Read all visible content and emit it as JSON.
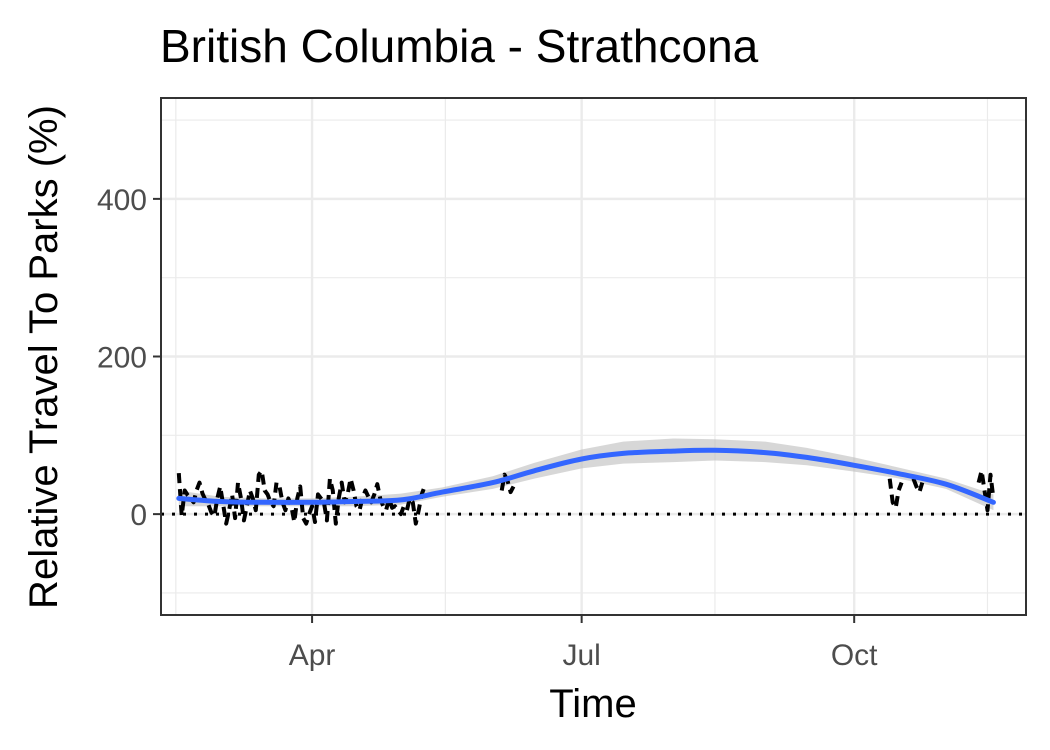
{
  "chart_data": {
    "type": "line",
    "title": "British Columbia - Strathcona",
    "xlabel": "Time",
    "ylabel": "Relative Travel To Parks (%)",
    "x_ticks": [
      "Apr",
      "Jul",
      "Oct"
    ],
    "x_tick_dates": [
      "2020-04-01",
      "2020-07-01",
      "2020-10-01"
    ],
    "xlim": [
      "2020-02-10",
      "2020-11-28"
    ],
    "y_ticks": [
      "0",
      "200",
      "400"
    ],
    "y_tick_values": [
      0,
      200,
      400
    ],
    "ylim": [
      -128,
      528
    ],
    "reference_line": {
      "y": 0,
      "style": "dotted"
    },
    "grid": true,
    "legend": "none",
    "colors": {
      "data": "#000000",
      "smooth": "#3366ff",
      "ribbon": "#bdbdbd",
      "grid": "#ebebeb",
      "reference": "#000000"
    },
    "series": [
      {
        "style": "line",
        "points": [
          [
            "2020-02-16",
            52
          ],
          [
            "2020-02-17",
            -2
          ],
          [
            "2020-02-18",
            30
          ],
          [
            "2020-02-19",
            24
          ],
          [
            "2020-02-20",
            20
          ],
          [
            "2020-02-21",
            15
          ],
          [
            "2020-02-22",
            30
          ],
          [
            "2020-02-23",
            40
          ],
          [
            "2020-02-24",
            26
          ],
          [
            "2020-02-25",
            18
          ],
          [
            "2020-02-26",
            12
          ],
          [
            "2020-02-27",
            2
          ],
          [
            "2020-02-28",
            -3
          ],
          [
            "2020-02-29",
            20
          ],
          [
            "2020-03-01",
            35
          ],
          [
            "2020-03-02",
            12
          ],
          [
            "2020-03-03",
            -12
          ],
          [
            "2020-03-04",
            5
          ],
          [
            "2020-03-05",
            25
          ],
          [
            "2020-03-06",
            -5
          ],
          [
            "2020-03-07",
            40
          ],
          [
            "2020-03-08",
            20
          ],
          [
            "2020-03-09",
            -8
          ],
          [
            "2020-03-10",
            10
          ],
          [
            "2020-03-11",
            30
          ],
          [
            "2020-03-12",
            20
          ],
          [
            "2020-03-13",
            5
          ],
          [
            "2020-03-14",
            50
          ],
          [
            "2020-03-15",
            55
          ],
          [
            "2020-03-16",
            30
          ],
          [
            "2020-03-17",
            25
          ],
          [
            "2020-03-18",
            15
          ],
          [
            "2020-03-19",
            10
          ],
          [
            "2020-03-20",
            40
          ],
          [
            "2020-03-21",
            35
          ],
          [
            "2020-03-22",
            15
          ],
          [
            "2020-03-23",
            5
          ],
          [
            "2020-03-24",
            20
          ],
          [
            "2020-03-25",
            10
          ],
          [
            "2020-03-26",
            -10
          ],
          [
            "2020-03-27",
            20
          ],
          [
            "2020-03-28",
            35
          ],
          [
            "2020-03-29",
            -5
          ],
          [
            "2020-03-30",
            -12
          ],
          [
            "2020-03-31",
            0
          ],
          [
            "2020-04-01",
            10
          ],
          [
            "2020-04-02",
            -10
          ],
          [
            "2020-04-03",
            25
          ],
          [
            "2020-04-04",
            20
          ],
          [
            "2020-04-05",
            15
          ],
          [
            "2020-04-06",
            -8
          ],
          [
            "2020-04-07",
            45
          ],
          [
            "2020-04-08",
            30
          ],
          [
            "2020-04-09",
            -12
          ],
          [
            "2020-04-10",
            20
          ],
          [
            "2020-04-11",
            40
          ],
          [
            "2020-04-12",
            15
          ],
          [
            "2020-04-13",
            25
          ],
          [
            "2020-04-14",
            45
          ],
          [
            "2020-04-15",
            30
          ],
          [
            "2020-04-16",
            10
          ],
          [
            "2020-04-17",
            5
          ],
          [
            "2020-04-18",
            20
          ],
          [
            "2020-04-19",
            30
          ],
          [
            "2020-04-20",
            22
          ],
          [
            "2020-04-21",
            15
          ],
          [
            "2020-04-22",
            25
          ],
          [
            "2020-04-23",
            38
          ],
          [
            "2020-04-24",
            20
          ],
          [
            "2020-04-25",
            10
          ],
          [
            "2020-04-26",
            5
          ],
          [
            "2020-04-27",
            20
          ],
          [
            "2020-04-28",
            8
          ],
          [
            "2020-04-29",
            10
          ],
          [
            "2020-04-30",
            5
          ],
          [
            "2020-05-01",
            0
          ],
          [
            "2020-05-02",
            10
          ],
          [
            "2020-05-03",
            5
          ],
          [
            "2020-05-04",
            20
          ],
          [
            "2020-05-05",
            15
          ],
          [
            "2020-05-06",
            -12
          ],
          [
            "2020-05-07",
            5
          ],
          [
            "2020-05-08",
            25
          ],
          [
            "2020-05-09",
            35
          ]
        ]
      },
      {
        "style": "line",
        "points": [
          [
            "2020-06-04",
            30
          ],
          [
            "2020-06-05",
            50
          ],
          [
            "2020-06-06",
            42
          ],
          [
            "2020-06-07",
            28
          ],
          [
            "2020-06-08",
            35
          ]
        ]
      },
      {
        "style": "line",
        "points": [
          [
            "2020-10-13",
            45
          ],
          [
            "2020-10-14",
            15
          ],
          [
            "2020-10-15",
            8
          ],
          [
            "2020-10-16",
            30
          ],
          [
            "2020-10-17",
            40
          ]
        ]
      },
      {
        "style": "line",
        "points": [
          [
            "2020-10-21",
            45
          ],
          [
            "2020-10-22",
            35
          ],
          [
            "2020-10-23",
            28
          ],
          [
            "2020-10-24",
            40
          ]
        ]
      },
      {
        "style": "line",
        "points": [
          [
            "2020-11-12",
            40
          ],
          [
            "2020-11-13",
            55
          ],
          [
            "2020-11-14",
            30
          ],
          [
            "2020-11-15",
            5
          ],
          [
            "2020-11-16",
            50
          ],
          [
            "2020-11-17",
            20
          ]
        ]
      },
      {
        "style": "smooth",
        "points": [
          [
            "2020-02-16",
            20
          ],
          [
            "2020-03-01",
            16
          ],
          [
            "2020-03-15",
            15
          ],
          [
            "2020-04-01",
            15
          ],
          [
            "2020-04-15",
            16
          ],
          [
            "2020-05-01",
            18
          ],
          [
            "2020-05-15",
            28
          ],
          [
            "2020-06-01",
            40
          ],
          [
            "2020-06-15",
            55
          ],
          [
            "2020-07-01",
            70
          ],
          [
            "2020-07-15",
            77
          ],
          [
            "2020-08-01",
            80
          ],
          [
            "2020-08-15",
            81
          ],
          [
            "2020-09-01",
            78
          ],
          [
            "2020-09-15",
            72
          ],
          [
            "2020-10-01",
            62
          ],
          [
            "2020-10-15",
            52
          ],
          [
            "2020-11-01",
            38
          ],
          [
            "2020-11-17",
            15
          ]
        ],
        "band": [
          [
            10,
            30
          ],
          [
            10,
            22
          ],
          [
            10,
            20
          ],
          [
            10,
            20
          ],
          [
            10,
            22
          ],
          [
            12,
            26
          ],
          [
            22,
            34
          ],
          [
            32,
            48
          ],
          [
            45,
            65
          ],
          [
            58,
            82
          ],
          [
            64,
            92
          ],
          [
            66,
            96
          ],
          [
            68,
            95
          ],
          [
            66,
            92
          ],
          [
            62,
            84
          ],
          [
            54,
            72
          ],
          [
            46,
            60
          ],
          [
            32,
            45
          ],
          [
            5,
            25
          ]
        ]
      }
    ]
  }
}
